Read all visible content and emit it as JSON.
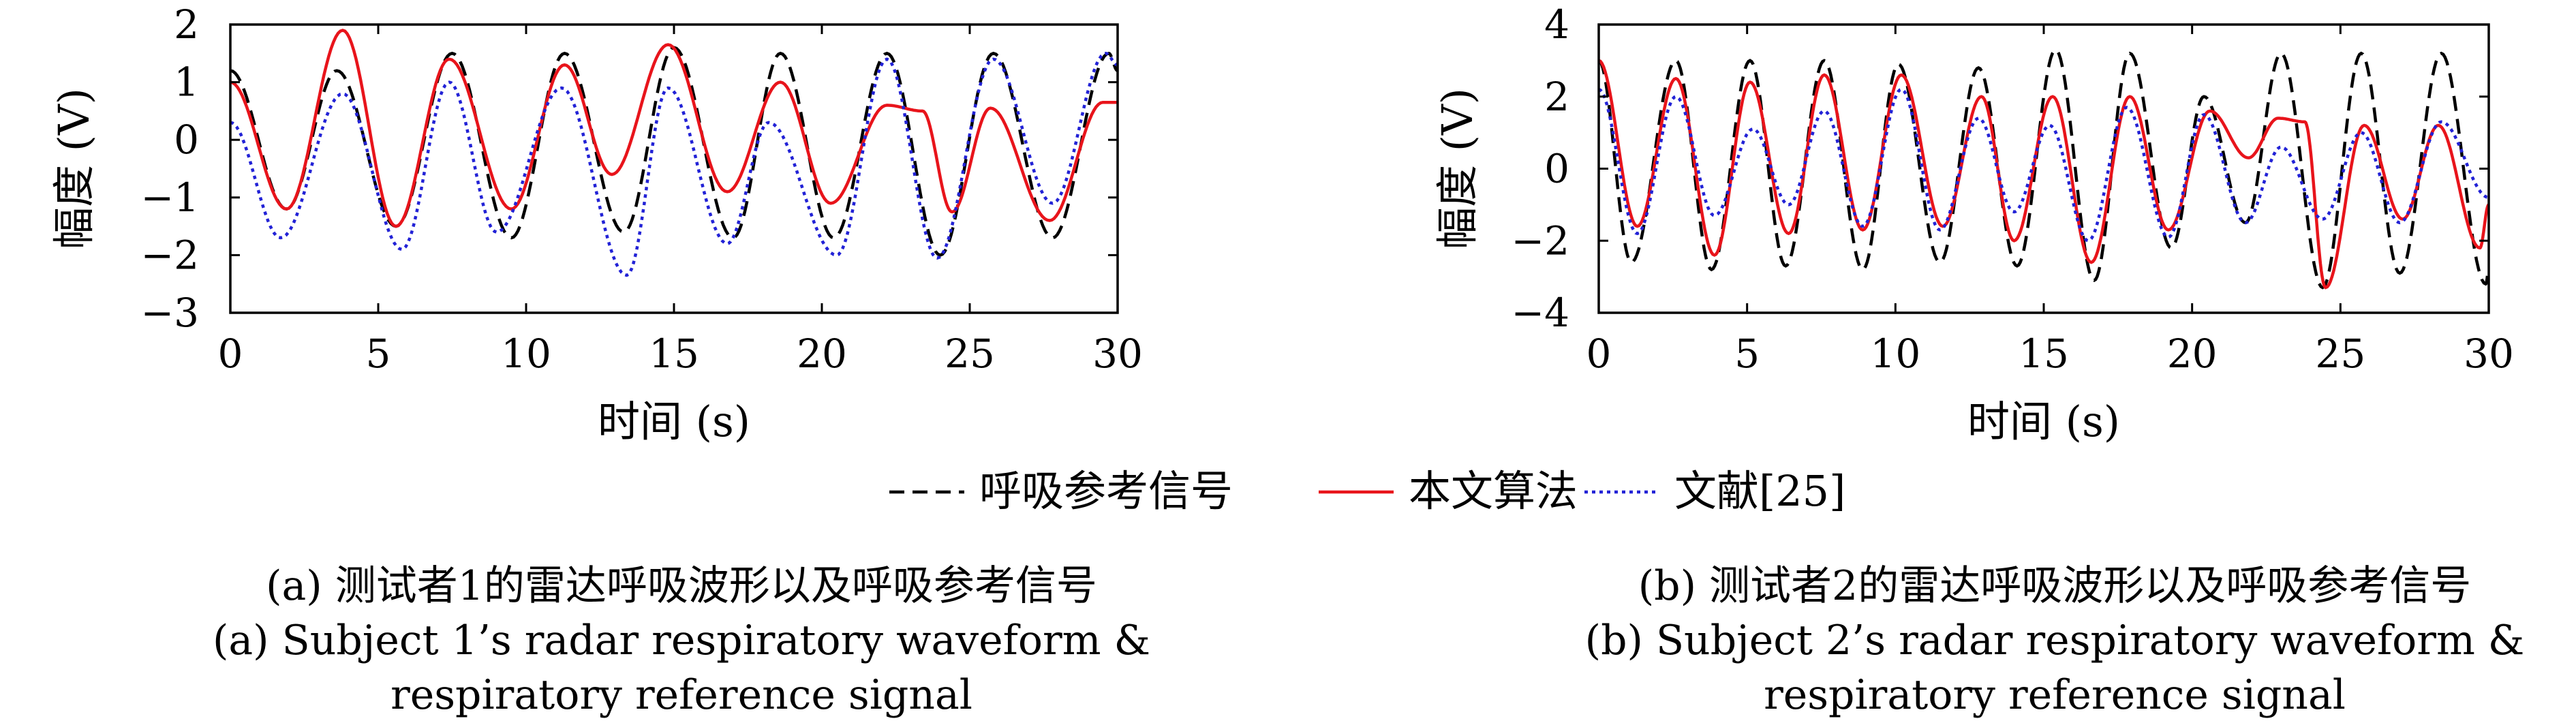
{
  "colors": {
    "reference": "#000000",
    "proposed": "#e8141b",
    "literature": "#2222d6"
  },
  "legend": [
    {
      "label": "呼吸参考信号",
      "style": "dashed",
      "color": "#000000"
    },
    {
      "label": "本文算法",
      "style": "solid",
      "color": "#e8141b"
    },
    {
      "label": "文献[25]",
      "style": "dotted",
      "color": "#2222d6"
    }
  ],
  "captions": {
    "a": [
      "(a) 测试者1的雷达呼吸波形以及呼吸参考信号",
      "(a) Subject 1’s radar respiratory  waveform &",
      "respiratory reference signal"
    ],
    "b": [
      "(b) 测试者2的雷达呼吸波形以及呼吸参考信号",
      "(b) Subject 2’s radar respiratory waveform &",
      "respiratory reference signal"
    ]
  },
  "chart_data": [
    {
      "type": "line",
      "xlabel": "时间 (s)",
      "ylabel": "幅度 (V)",
      "xlim": [
        0,
        30
      ],
      "ylim": [
        -3,
        2
      ],
      "xticks": [
        "0",
        "5",
        "10",
        "15",
        "20",
        "25",
        "30"
      ],
      "yticks": [
        "−3",
        "−2",
        "−1",
        "0",
        "1",
        "2"
      ],
      "grid": false,
      "series": [
        {
          "name": "呼吸参考信号",
          "style": "dashed",
          "points": [
            [
              0,
              1.2
            ],
            [
              1.9,
              -1.2
            ],
            [
              3.6,
              1.2
            ],
            [
              5.6,
              -1.5
            ],
            [
              7.5,
              1.5
            ],
            [
              9.5,
              -1.7
            ],
            [
              11.3,
              1.5
            ],
            [
              13.3,
              -1.6
            ],
            [
              15.0,
              1.6
            ],
            [
              17.0,
              -1.7
            ],
            [
              18.6,
              1.5
            ],
            [
              20.4,
              -1.7
            ],
            [
              22.2,
              1.5
            ],
            [
              24.0,
              -2.0
            ],
            [
              25.8,
              1.5
            ],
            [
              27.8,
              -1.7
            ],
            [
              29.7,
              1.5
            ],
            [
              30,
              1.2
            ]
          ]
        },
        {
          "name": "本文算法",
          "style": "solid",
          "points": [
            [
              0,
              1.0
            ],
            [
              1.9,
              -1.2
            ],
            [
              3.8,
              1.9
            ],
            [
              5.6,
              -1.5
            ],
            [
              7.4,
              1.4
            ],
            [
              9.5,
              -1.2
            ],
            [
              11.3,
              1.3
            ],
            [
              12.9,
              -0.6
            ],
            [
              14.8,
              1.65
            ],
            [
              16.8,
              -0.9
            ],
            [
              18.6,
              1.0
            ],
            [
              20.3,
              -1.1
            ],
            [
              22.2,
              0.6
            ],
            [
              23.4,
              0.5
            ],
            [
              24.4,
              -1.25
            ],
            [
              25.7,
              0.55
            ],
            [
              27.7,
              -1.4
            ],
            [
              29.5,
              0.65
            ],
            [
              30,
              0.65
            ]
          ]
        },
        {
          "name": "文献[25]",
          "style": "dotted",
          "points": [
            [
              0,
              0.3
            ],
            [
              1.7,
              -1.7
            ],
            [
              3.8,
              0.8
            ],
            [
              5.8,
              -1.9
            ],
            [
              7.4,
              1.0
            ],
            [
              9.0,
              -1.6
            ],
            [
              11.2,
              0.9
            ],
            [
              13.4,
              -2.35
            ],
            [
              14.8,
              0.9
            ],
            [
              16.8,
              -1.8
            ],
            [
              18.2,
              0.3
            ],
            [
              20.5,
              -2.0
            ],
            [
              22.2,
              1.4
            ],
            [
              23.9,
              -2.05
            ],
            [
              25.8,
              1.4
            ],
            [
              27.8,
              -1.1
            ],
            [
              29.6,
              1.5
            ],
            [
              30,
              1.3
            ]
          ]
        }
      ]
    },
    {
      "type": "line",
      "xlabel": "时间 (s)",
      "ylabel": "幅度 (V)",
      "xlim": [
        0,
        30
      ],
      "ylim": [
        -4,
        4
      ],
      "xticks": [
        "0",
        "5",
        "10",
        "15",
        "20",
        "25",
        "30"
      ],
      "yticks": [
        "−4",
        "−2",
        "0",
        "2",
        "4"
      ],
      "grid": false,
      "series": [
        {
          "name": "呼吸参考信号",
          "style": "dashed",
          "points": [
            [
              0,
              3.0
            ],
            [
              1.1,
              -2.6
            ],
            [
              2.6,
              3.0
            ],
            [
              3.8,
              -2.8
            ],
            [
              5.1,
              3.0
            ],
            [
              6.3,
              -2.7
            ],
            [
              7.6,
              3.0
            ],
            [
              8.9,
              -2.8
            ],
            [
              10.1,
              2.9
            ],
            [
              11.5,
              -2.6
            ],
            [
              12.8,
              2.8
            ],
            [
              14.1,
              -2.7
            ],
            [
              15.4,
              3.3
            ],
            [
              16.7,
              -3.1
            ],
            [
              17.9,
              3.2
            ],
            [
              19.3,
              -2.2
            ],
            [
              20.4,
              2.0
            ],
            [
              21.8,
              -1.5
            ],
            [
              23.0,
              3.2
            ],
            [
              24.4,
              -3.3
            ],
            [
              25.7,
              3.2
            ],
            [
              27.0,
              -2.9
            ],
            [
              28.4,
              3.2
            ],
            [
              29.9,
              -3.2
            ],
            [
              30,
              -2.8
            ]
          ]
        },
        {
          "name": "本文算法",
          "style": "solid",
          "points": [
            [
              0,
              3.0
            ],
            [
              1.3,
              -1.6
            ],
            [
              2.6,
              2.5
            ],
            [
              3.9,
              -2.4
            ],
            [
              5.1,
              2.4
            ],
            [
              6.4,
              -1.8
            ],
            [
              7.6,
              2.6
            ],
            [
              8.9,
              -1.7
            ],
            [
              10.2,
              2.6
            ],
            [
              11.6,
              -1.6
            ],
            [
              12.9,
              2.0
            ],
            [
              14.0,
              -2.0
            ],
            [
              15.3,
              2.0
            ],
            [
              16.6,
              -2.6
            ],
            [
              17.9,
              2.0
            ],
            [
              19.2,
              -1.7
            ],
            [
              20.6,
              1.6
            ],
            [
              21.9,
              0.3
            ],
            [
              22.9,
              1.4
            ],
            [
              23.8,
              1.3
            ],
            [
              24.5,
              -3.3
            ],
            [
              25.8,
              1.2
            ],
            [
              27.1,
              -1.4
            ],
            [
              28.3,
              1.2
            ],
            [
              29.7,
              -2.2
            ],
            [
              30,
              -1.0
            ]
          ]
        },
        {
          "name": "文献[25]",
          "style": "dotted",
          "points": [
            [
              0,
              2.2
            ],
            [
              1.3,
              -1.8
            ],
            [
              2.6,
              2.0
            ],
            [
              3.9,
              -1.3
            ],
            [
              5.2,
              1.1
            ],
            [
              6.4,
              -1.0
            ],
            [
              7.6,
              1.6
            ],
            [
              8.9,
              -1.6
            ],
            [
              10.2,
              2.2
            ],
            [
              11.5,
              -1.7
            ],
            [
              12.8,
              1.4
            ],
            [
              14.0,
              -1.2
            ],
            [
              15.2,
              1.2
            ],
            [
              16.5,
              -2.0
            ],
            [
              17.8,
              1.7
            ],
            [
              19.2,
              -1.9
            ],
            [
              20.4,
              1.5
            ],
            [
              21.8,
              -1.5
            ],
            [
              23.0,
              0.6
            ],
            [
              24.4,
              -1.4
            ],
            [
              25.7,
              1.0
            ],
            [
              27.0,
              -1.5
            ],
            [
              28.4,
              1.3
            ],
            [
              30,
              -0.8
            ]
          ]
        }
      ]
    }
  ]
}
